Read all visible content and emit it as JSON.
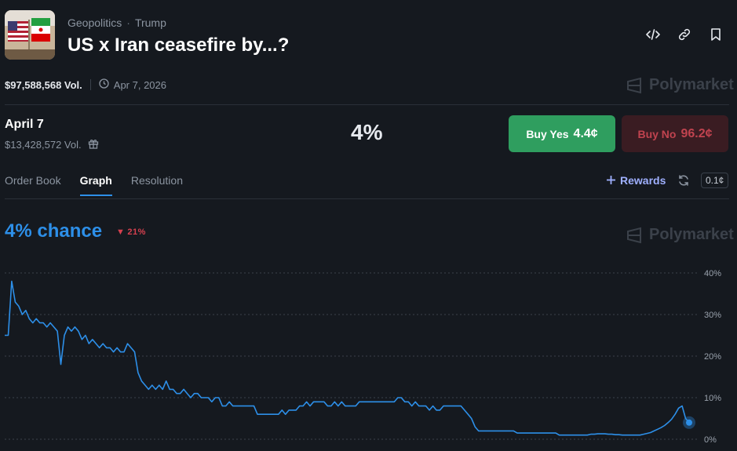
{
  "header": {
    "breadcrumb": [
      "Geopolitics",
      "Trump"
    ],
    "breadcrumb_sep": "·",
    "title": "US x Iran ceasefire by...?",
    "icons": [
      "embed-icon",
      "link-icon",
      "bookmark-icon"
    ]
  },
  "market": {
    "volume": "$97,588,568 Vol.",
    "end_date": "Apr 7, 2026",
    "brand": "Polymarket"
  },
  "outcome": {
    "name": "April 7",
    "volume": "$13,428,572 Vol.",
    "probability": "4%",
    "buy_yes_label": "Buy Yes",
    "buy_yes_price": "4.4¢",
    "buy_no_label": "Buy No",
    "buy_no_price": "96.2¢"
  },
  "tabs": [
    {
      "label": "Order Book",
      "active": false
    },
    {
      "label": "Graph",
      "active": true
    },
    {
      "label": "Resolution",
      "active": false
    }
  ],
  "toolbar": {
    "rewards_label": "Rewards",
    "tick_size": "0.1¢"
  },
  "graph": {
    "chance_label": "4% chance",
    "change": "21%",
    "watermark": "Polymarket"
  },
  "colors": {
    "accent": "#2d8fe8",
    "yes": "#2f9e5f",
    "no_bg": "#3a1c22",
    "no_text": "#c0434f",
    "down": "#d6404f"
  },
  "chart_data": {
    "type": "line",
    "ylabel": "",
    "xlabel": "",
    "ylim": [
      0,
      40
    ],
    "y_ticks": [
      "40%",
      "30%",
      "20%",
      "10%",
      "0%"
    ],
    "grid": true,
    "series": [
      {
        "values": [
          25,
          25,
          38,
          33,
          32,
          30,
          31,
          29,
          28,
          29,
          28,
          28,
          27,
          28,
          27,
          26,
          18,
          25,
          27,
          26,
          27,
          26,
          24,
          25,
          23,
          24,
          23,
          22,
          23,
          22,
          22,
          21,
          22,
          21,
          21,
          23,
          22,
          21,
          16,
          14,
          13,
          12,
          13,
          12,
          13,
          12,
          14,
          12,
          12,
          11,
          11,
          12,
          11,
          10,
          11,
          11,
          10,
          10,
          10,
          9,
          10,
          10,
          8,
          8,
          9,
          8,
          8,
          8,
          8,
          8,
          8,
          8,
          6,
          6,
          6,
          6,
          6,
          6,
          6,
          7,
          6,
          7,
          7,
          7,
          8,
          8,
          9,
          8,
          9,
          9,
          9,
          9,
          8,
          8,
          9,
          8,
          9,
          8,
          8,
          8,
          8,
          9,
          9,
          9,
          9,
          9,
          9,
          9,
          9,
          9,
          9,
          9,
          10,
          10,
          9,
          9,
          8,
          9,
          8,
          8,
          8,
          7,
          8,
          7,
          7,
          8,
          8,
          8,
          8,
          8,
          8,
          7,
          6,
          5,
          3,
          2,
          2,
          2,
          2,
          2,
          2,
          2,
          2,
          2,
          2,
          2,
          1.5,
          1.5,
          1.5,
          1.5,
          1.5,
          1.5,
          1.5,
          1.5,
          1.5,
          1.5,
          1.5,
          1.5,
          1,
          1,
          1,
          1,
          1,
          1,
          1,
          1,
          1,
          1.2,
          1.2,
          1.3,
          1.3,
          1.3,
          1.2,
          1.2,
          1.1,
          1.1,
          1,
          1,
          1,
          1,
          1,
          1,
          1.2,
          1.4,
          1.6,
          2,
          2.4,
          2.8,
          3.3,
          4,
          4.8,
          6,
          7.5,
          8,
          5,
          4
        ]
      }
    ]
  }
}
